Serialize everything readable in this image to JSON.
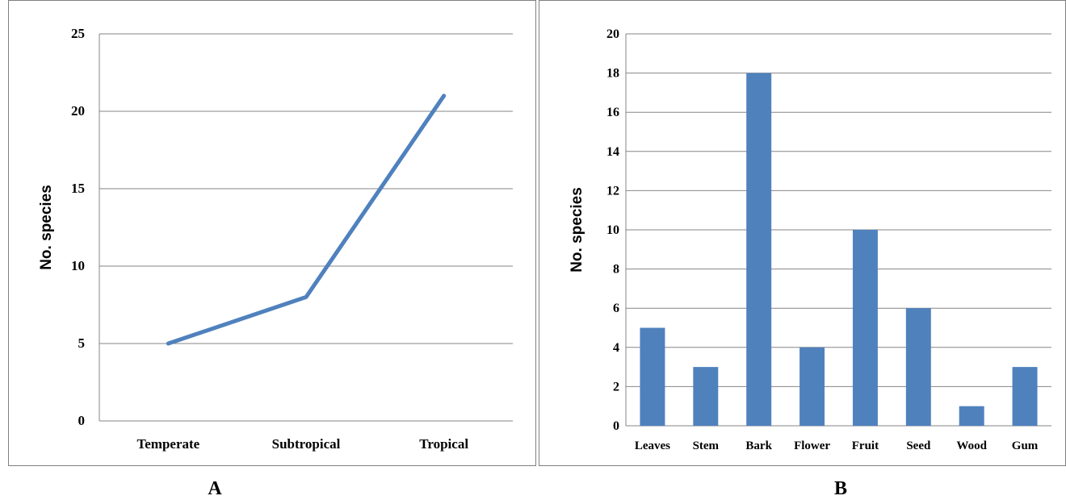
{
  "chart_data": [
    {
      "type": "line",
      "panel_label": "A",
      "categories": [
        "Temperate",
        "Subtropical",
        "Tropical"
      ],
      "values": [
        5,
        8,
        21
      ],
      "ylabel": "No. species",
      "xlabel": "",
      "ylim": [
        0,
        25
      ],
      "yticks": [
        "0",
        "5",
        "10",
        "15",
        "20",
        "25"
      ],
      "grid": true,
      "color": "#4F81BD"
    },
    {
      "type": "bar",
      "panel_label": "B",
      "categories": [
        "Leaves",
        "Stem",
        "Bark",
        "Flower",
        "Fruit",
        "Seed",
        "Wood",
        "Gum"
      ],
      "values": [
        5,
        3,
        18,
        4,
        10,
        6,
        1,
        3
      ],
      "ylabel": "No. species",
      "xlabel": "",
      "ylim": [
        0,
        20
      ],
      "yticks": [
        "0",
        "2",
        "4",
        "6",
        "8",
        "10",
        "12",
        "14",
        "16",
        "18",
        "20"
      ],
      "grid": true,
      "color": "#4F81BD"
    }
  ]
}
